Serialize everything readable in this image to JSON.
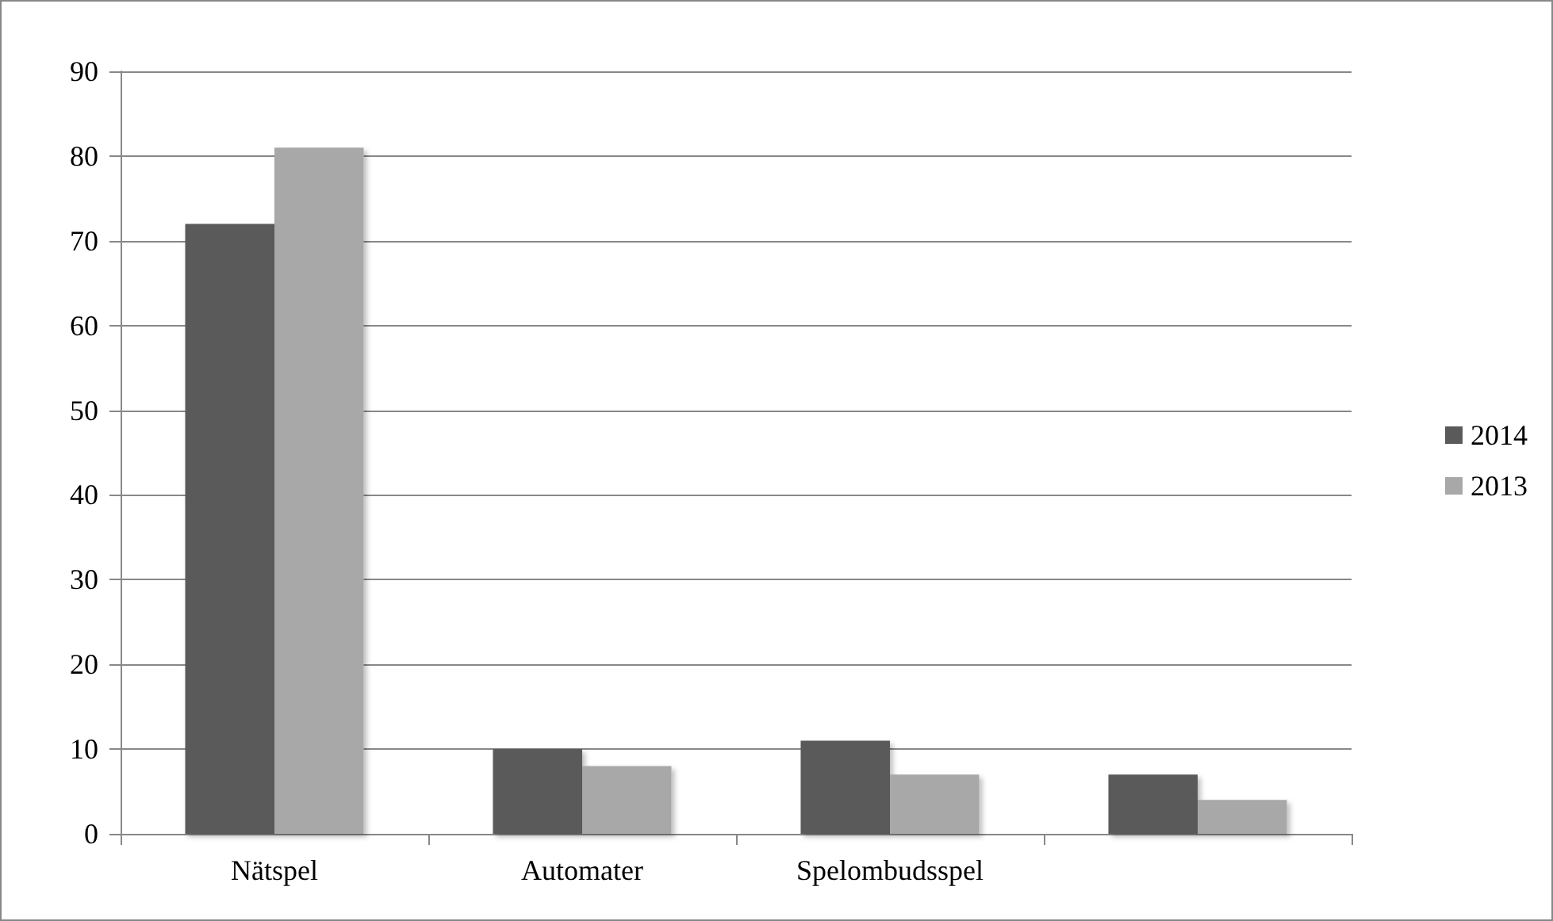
{
  "chart_data": {
    "type": "bar",
    "categories": [
      "Nätspel",
      "Automater",
      "Spelombudsspel",
      null
    ],
    "series": [
      {
        "name": "2014",
        "color": "#5a5a5a",
        "values": [
          72,
          10,
          11,
          7
        ]
      },
      {
        "name": "2013",
        "color": "#a8a8a8",
        "values": [
          81,
          8,
          7,
          4
        ]
      }
    ],
    "ylim": [
      0,
      90
    ],
    "yticks": [
      0,
      10,
      20,
      30,
      40,
      50,
      60,
      70,
      80,
      90
    ],
    "grid": "y",
    "legend": "right"
  }
}
